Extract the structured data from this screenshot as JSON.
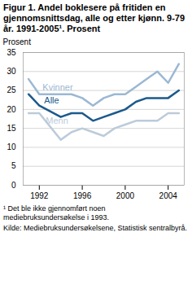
{
  "chart_data": {
    "type": "line",
    "title": "Figur 1. Andel boklesere på fritiden en gjennomsnittsdag, alle og etter kjønn. 9-79 år. 1991-2005¹. Prosent",
    "ylabel": "Prosent",
    "x": [
      1991,
      1992,
      1994,
      1995,
      1996,
      1997,
      1998,
      1999,
      2000,
      2001,
      2002,
      2003,
      2004,
      2005
    ],
    "series": [
      {
        "name": "Kvinner",
        "color": "#9bb8d3",
        "values": [
          28,
          24,
          24,
          24,
          23,
          21,
          23,
          24,
          24,
          26,
          28,
          30,
          27,
          32
        ]
      },
      {
        "name": "Alle",
        "color": "#1c5a8c",
        "values": [
          24,
          21,
          18,
          19,
          19,
          17,
          18,
          19,
          20,
          22,
          23,
          23,
          23,
          25
        ]
      },
      {
        "name": "Menn",
        "color": "#bccbda",
        "values": [
          19,
          19,
          12,
          14,
          15,
          14,
          13,
          15,
          16,
          17,
          17,
          17,
          19,
          19
        ]
      }
    ],
    "xlim": [
      1990.5,
      2005.5
    ],
    "xticks": [
      1992,
      1996,
      2000,
      2004
    ],
    "ylim": [
      0,
      35
    ],
    "yticks": [
      0,
      5,
      10,
      15,
      20,
      25,
      30,
      35
    ],
    "grid": true,
    "annotations": [
      "¹ Det ble ikke gjennomført noen mediebruksundersøkelse i 1993.",
      "Kilde: Mediebruksundersøkelsene, Statistisk sentralbyrå."
    ]
  }
}
